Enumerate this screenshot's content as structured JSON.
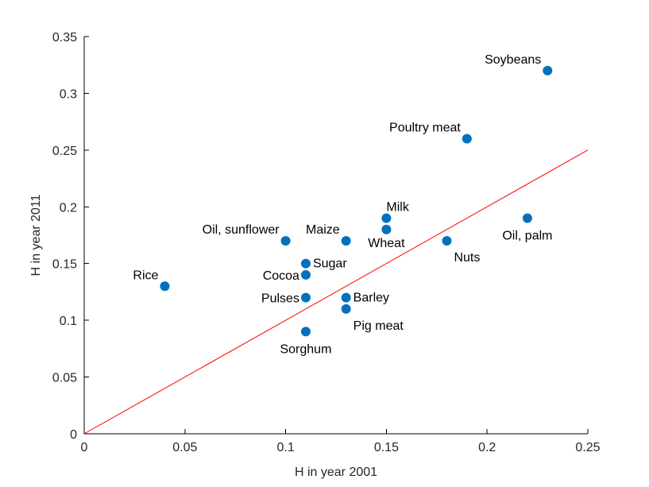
{
  "chart_data": {
    "type": "scatter",
    "title": "",
    "xlabel": "H in year 2001",
    "ylabel": "H in year 2011",
    "xlim": [
      0,
      0.25
    ],
    "ylim": [
      0,
      0.35
    ],
    "xticks": [
      0,
      0.05,
      0.1,
      0.15,
      0.2,
      0.25
    ],
    "yticks": [
      0,
      0.05,
      0.1,
      0.15,
      0.2,
      0.25,
      0.3,
      0.35
    ],
    "xtick_labels": [
      "0",
      "0.05",
      "0.1",
      "0.15",
      "0.2",
      "0.25"
    ],
    "ytick_labels": [
      "0",
      "0.05",
      "0.1",
      "0.15",
      "0.2",
      "0.25",
      "0.3",
      "0.35"
    ],
    "grid": false,
    "marker_color": "#0072BD",
    "reference_line": {
      "from": [
        0,
        0
      ],
      "to": [
        0.25,
        0.25
      ],
      "color": "#FF0000"
    },
    "points": [
      {
        "name": "Soybeans",
        "x": 0.23,
        "y": 0.32,
        "label_pos": "above-left"
      },
      {
        "name": "Poultry meat",
        "x": 0.19,
        "y": 0.26,
        "label_pos": "above-left"
      },
      {
        "name": "Oil, palm",
        "x": 0.22,
        "y": 0.19,
        "label_pos": "below"
      },
      {
        "name": "Milk",
        "x": 0.15,
        "y": 0.19,
        "label_pos": "above-right"
      },
      {
        "name": "Wheat",
        "x": 0.15,
        "y": 0.18,
        "label_pos": "below-left"
      },
      {
        "name": "Maize",
        "x": 0.13,
        "y": 0.17,
        "label_pos": "above-left"
      },
      {
        "name": "Oil, sunflower",
        "x": 0.1,
        "y": 0.17,
        "label_pos": "above-left"
      },
      {
        "name": "Nuts",
        "x": 0.18,
        "y": 0.17,
        "label_pos": "below-right"
      },
      {
        "name": "Rice",
        "x": 0.04,
        "y": 0.13,
        "label_pos": "above-left"
      },
      {
        "name": "Sugar",
        "x": 0.11,
        "y": 0.15,
        "label_pos": "right"
      },
      {
        "name": "Cocoa",
        "x": 0.11,
        "y": 0.14,
        "label_pos": "left"
      },
      {
        "name": "Pulses",
        "x": 0.11,
        "y": 0.12,
        "label_pos": "left"
      },
      {
        "name": "Barley",
        "x": 0.13,
        "y": 0.12,
        "label_pos": "right"
      },
      {
        "name": "Pig meat",
        "x": 0.13,
        "y": 0.11,
        "label_pos": "below-right"
      },
      {
        "name": "Sorghum",
        "x": 0.11,
        "y": 0.09,
        "label_pos": "below"
      }
    ]
  }
}
